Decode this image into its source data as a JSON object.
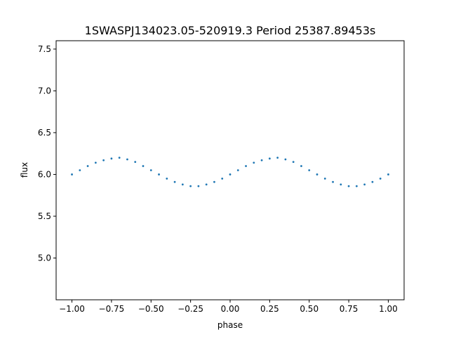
{
  "chart_data": {
    "type": "scatter",
    "title": "1SWASPJ134023.05-520919.3 Period 25387.89453s",
    "xlabel": "phase",
    "ylabel": "flux",
    "xlim": [
      -1.1,
      1.1
    ],
    "ylim": [
      4.5,
      7.6
    ],
    "xticks": [
      -1.0,
      -0.75,
      -0.5,
      -0.25,
      0.0,
      0.25,
      0.5,
      0.75,
      1.0
    ],
    "xtick_labels": [
      "−1.00",
      "−0.75",
      "−0.50",
      "−0.25",
      "0.00",
      "0.25",
      "0.50",
      "0.75",
      "1.00"
    ],
    "yticks": [
      5.0,
      5.5,
      6.0,
      6.5,
      7.0,
      7.5
    ],
    "ytick_labels": [
      "5.0",
      "5.5",
      "6.0",
      "6.5",
      "7.0",
      "7.5"
    ],
    "grid": false,
    "marker_color": "#1f77b4",
    "series": [
      {
        "x": [
          -1.0,
          -0.95,
          -0.9,
          -0.85,
          -0.8,
          -0.75,
          -0.7,
          -0.65,
          -0.6,
          -0.55,
          -0.5,
          -0.45,
          -0.4,
          -0.35,
          -0.3,
          -0.25,
          -0.2,
          -0.15,
          -0.1,
          -0.05,
          0.0,
          0.05,
          0.1,
          0.15,
          0.2,
          0.25,
          0.3,
          0.35,
          0.4,
          0.45,
          0.5,
          0.55,
          0.6,
          0.65,
          0.7,
          0.75,
          0.8,
          0.85,
          0.9,
          0.95,
          1.0
        ],
        "y": [
          6.0,
          6.05,
          6.1,
          6.14,
          6.17,
          6.19,
          6.2,
          6.18,
          6.15,
          6.1,
          6.05,
          6.0,
          5.95,
          5.91,
          5.88,
          5.86,
          5.86,
          5.88,
          5.91,
          5.95,
          6.0,
          6.05,
          6.1,
          6.14,
          6.17,
          6.19,
          6.2,
          6.18,
          6.15,
          6.1,
          6.05,
          6.0,
          5.95,
          5.91,
          5.88,
          5.86,
          5.86,
          5.88,
          5.91,
          5.95,
          6.0
        ]
      }
    ]
  }
}
